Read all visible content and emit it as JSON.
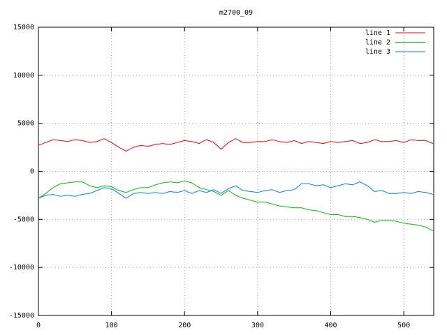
{
  "chart_data": {
    "type": "line",
    "title": "m2700_09",
    "x": [
      0,
      10,
      20,
      30,
      40,
      50,
      60,
      70,
      80,
      90,
      100,
      110,
      120,
      130,
      140,
      150,
      160,
      170,
      180,
      190,
      200,
      210,
      220,
      230,
      240,
      250,
      260,
      270,
      280,
      290,
      300,
      310,
      320,
      330,
      340,
      350,
      360,
      370,
      380,
      390,
      400,
      410,
      420,
      430,
      440,
      450,
      460,
      470,
      480,
      490,
      500,
      510,
      520,
      530,
      540
    ],
    "series": [
      {
        "name": "line 1",
        "color": "#ff0000",
        "values": [
          2700,
          3000,
          3300,
          3200,
          3100,
          3300,
          3200,
          3000,
          3100,
          3400,
          3000,
          2500,
          2100,
          2500,
          2700,
          2600,
          2800,
          2900,
          2800,
          3000,
          3200,
          3100,
          2900,
          3300,
          3000,
          2300,
          3000,
          3400,
          3000,
          3000,
          3100,
          3100,
          3300,
          3100,
          3000,
          3200,
          2900,
          3100,
          3000,
          2900,
          3100,
          3000,
          3100,
          3200,
          2900,
          3000,
          3300,
          3100,
          3100,
          3200,
          3000,
          3300,
          3200,
          3200,
          2900
        ]
      },
      {
        "name": "line 2",
        "color": "#00c000",
        "values": [
          -2800,
          -2300,
          -1700,
          -1300,
          -1200,
          -1100,
          -1100,
          -1500,
          -1700,
          -1500,
          -1600,
          -2000,
          -2200,
          -1900,
          -1700,
          -1700,
          -1400,
          -1200,
          -1100,
          -1200,
          -1000,
          -1200,
          -1700,
          -1900,
          -2100,
          -2500,
          -2000,
          -2500,
          -2800,
          -3000,
          -3200,
          -3200,
          -3400,
          -3600,
          -3700,
          -3800,
          -3800,
          -4000,
          -4100,
          -4300,
          -4500,
          -4500,
          -4700,
          -4700,
          -4800,
          -5000,
          -5300,
          -5100,
          -5100,
          -5200,
          -5400,
          -5500,
          -5600,
          -5800,
          -6200
        ]
      },
      {
        "name": "line 3",
        "color": "#0080ff",
        "values": [
          -2800,
          -2500,
          -2400,
          -2600,
          -2500,
          -2600,
          -2400,
          -2300,
          -2000,
          -1700,
          -1800,
          -2300,
          -2800,
          -2300,
          -2200,
          -2300,
          -2200,
          -2300,
          -2100,
          -2200,
          -2000,
          -2300,
          -2000,
          -2200,
          -1900,
          -2300,
          -1800,
          -1500,
          -2000,
          -2100,
          -2200,
          -2000,
          -1900,
          -2200,
          -2000,
          -1900,
          -1300,
          -1300,
          -1500,
          -1400,
          -1700,
          -1500,
          -1300,
          -1400,
          -1100,
          -1500,
          -2100,
          -2000,
          -2300,
          -2300,
          -2200,
          -2300,
          -2100,
          -2200,
          -2400
        ]
      }
    ],
    "xlim": [
      0,
      541
    ],
    "xticks": [
      0,
      100,
      200,
      300,
      400,
      500
    ],
    "ylim": [
      -15000,
      15000
    ],
    "yticks": [
      -15000,
      -10000,
      -5000,
      0,
      5000,
      10000,
      15000
    ],
    "grid": true,
    "legend": "top-right"
  }
}
